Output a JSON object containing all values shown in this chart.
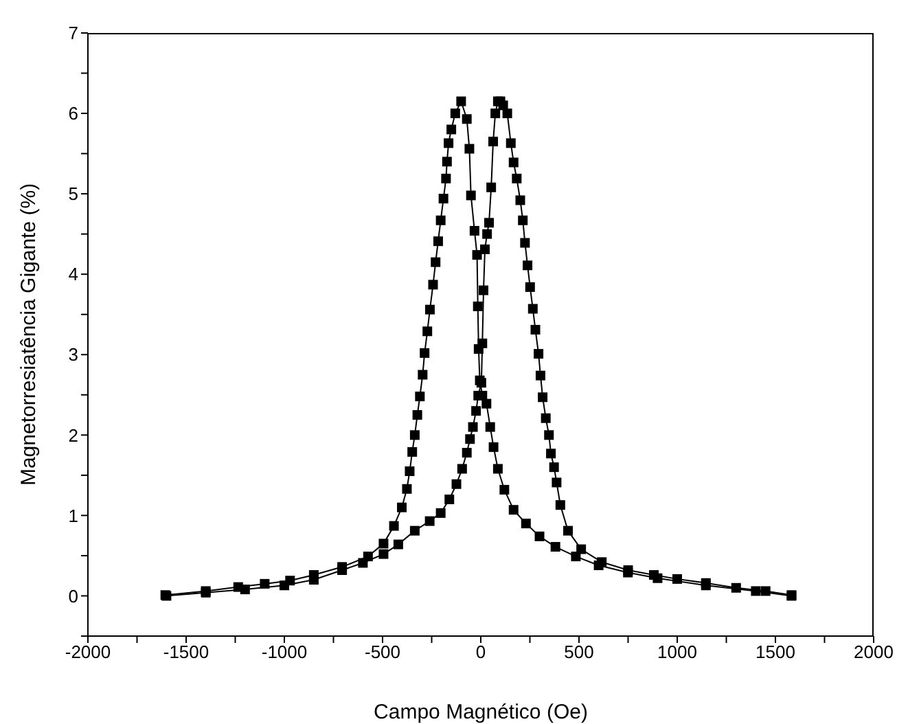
{
  "chart_data": {
    "type": "line",
    "xlabel": "Campo Magnético (Oe)",
    "ylabel": "Magnetorresiatência Gigante (%)",
    "marker": "square",
    "line_style": "solid",
    "xlim": [
      -2000,
      2000
    ],
    "ylim": [
      -0.5,
      7
    ],
    "xticks": [
      -2000,
      {
        "value": -1750,
        "label": null
      },
      -1500,
      {
        "value": -1250,
        "label": null
      },
      -1000,
      {
        "value": -750,
        "label": null
      },
      -500,
      {
        "value": -250,
        "label": null
      },
      0,
      {
        "value": 250,
        "label": null
      },
      500,
      {
        "value": 750,
        "label": null
      },
      1000,
      {
        "value": 1250,
        "label": null
      },
      1500,
      {
        "value": 1750,
        "label": null
      },
      2000
    ],
    "yticks": [
      {
        "value": -0.5,
        "label": null
      },
      0,
      {
        "value": 0.5,
        "label": null
      },
      1,
      {
        "value": 1.5,
        "label": null
      },
      2,
      {
        "value": 2.5,
        "label": null
      },
      3,
      {
        "value": 3.5,
        "label": null
      },
      4,
      {
        "value": 4.5,
        "label": null
      },
      5,
      {
        "value": 5.5,
        "label": null
      },
      6,
      {
        "value": 6.5,
        "label": null
      },
      7
    ],
    "series": [
      {
        "color": "#000000",
        "x": [
          -1600,
          -1400,
          -1200,
          -1000,
          -850,
          -706,
          -600,
          -495,
          -420,
          -336,
          -260,
          -204,
          -160,
          -124,
          -95,
          -71,
          -55,
          -40,
          -24,
          -13,
          3,
          8,
          14,
          21,
          32,
          42,
          53,
          63,
          74,
          87,
          100,
          114,
          135,
          153,
          167,
          183,
          201,
          214,
          225,
          238,
          251,
          265,
          278,
          294,
          304,
          315,
          331,
          347,
          357,
          373,
          386,
          405,
          444,
          511,
          616,
          750,
          881,
          1000,
          1146,
          1300,
          1450,
          1582
        ],
        "values": [
          0.0,
          0.04,
          0.08,
          0.13,
          0.2,
          0.32,
          0.41,
          0.52,
          0.64,
          0.81,
          0.93,
          1.03,
          1.2,
          1.39,
          1.58,
          1.78,
          1.95,
          2.1,
          2.3,
          2.49,
          2.65,
          3.14,
          3.8,
          4.31,
          4.5,
          4.64,
          5.08,
          5.65,
          6.0,
          6.15,
          6.15,
          6.1,
          6.0,
          5.63,
          5.39,
          5.19,
          4.92,
          4.67,
          4.39,
          4.11,
          3.84,
          3.57,
          3.31,
          3.01,
          2.74,
          2.47,
          2.21,
          2.0,
          1.77,
          1.6,
          1.41,
          1.13,
          0.81,
          0.58,
          0.42,
          0.32,
          0.26,
          0.21,
          0.16,
          0.1,
          0.06,
          0.01
        ]
      },
      {
        "color": "#000000",
        "x": [
          1582,
          1400,
          1146,
          900,
          749,
          600,
          484,
          380,
          299,
          230,
          167,
          120,
          87,
          65,
          48,
          29,
          8,
          -5,
          -11,
          -15,
          -19,
          -32,
          -50,
          -58,
          -71,
          -100,
          -130,
          -150,
          -164,
          -172,
          -177,
          -190,
          -204,
          -217,
          -230,
          -243,
          -259,
          -272,
          -286,
          -296,
          -310,
          -323,
          -336,
          -349,
          -362,
          -376,
          -402,
          -442,
          -495,
          -574,
          -706,
          -850,
          -971,
          -1100,
          -1235,
          -1400,
          -1606
        ],
        "values": [
          0.0,
          0.06,
          0.13,
          0.22,
          0.29,
          0.38,
          0.49,
          0.61,
          0.74,
          0.9,
          1.07,
          1.32,
          1.58,
          1.85,
          2.1,
          2.39,
          2.49,
          2.68,
          3.07,
          3.6,
          4.24,
          4.54,
          4.98,
          5.56,
          5.93,
          6.15,
          6.0,
          5.8,
          5.63,
          5.4,
          5.19,
          4.94,
          4.67,
          4.41,
          4.15,
          3.87,
          3.56,
          3.29,
          3.02,
          2.75,
          2.48,
          2.25,
          2.0,
          1.79,
          1.55,
          1.33,
          1.1,
          0.87,
          0.65,
          0.49,
          0.36,
          0.26,
          0.19,
          0.15,
          0.11,
          0.06,
          0.01
        ]
      }
    ]
  }
}
